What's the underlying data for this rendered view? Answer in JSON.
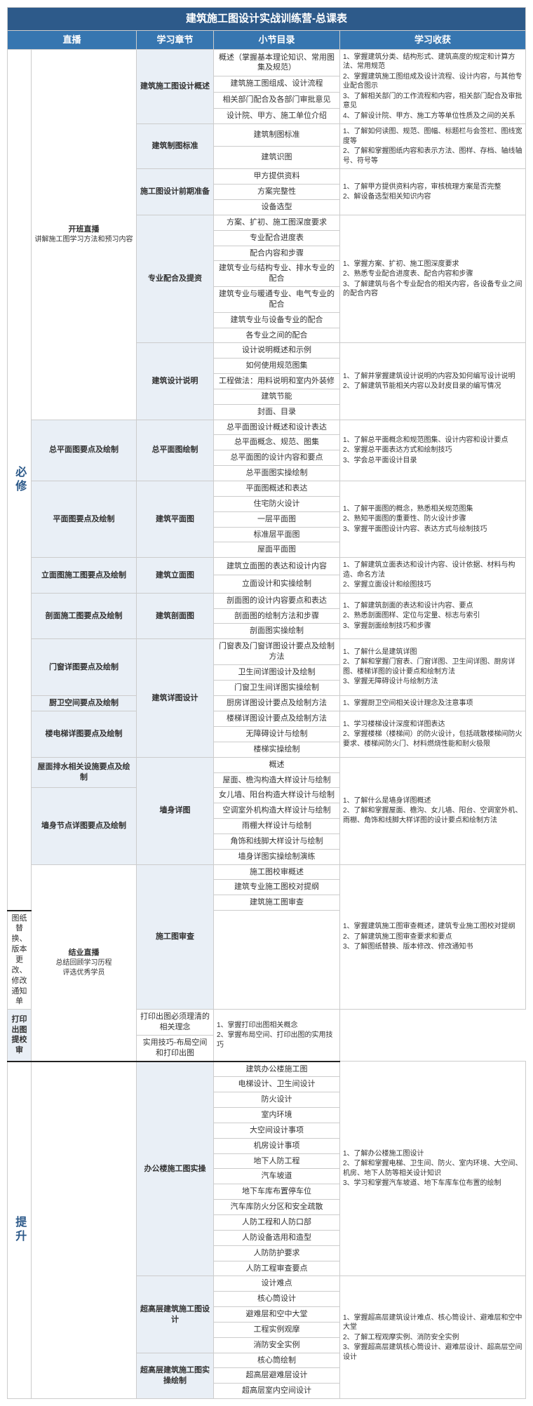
{
  "title": "建筑施工图设计实战训练营-总课表",
  "headers": [
    "直播",
    "学习章节",
    "小节目录",
    "学习收获"
  ],
  "levels": {
    "a": "必修",
    "b": "提升"
  },
  "live": {
    "open_b": "开班直播",
    "open_s": "讲解施工图学习方法和预习内容",
    "end_b": "结业直播",
    "end_s1": "总结回顾学习历程",
    "end_s2": "评选优秀学员"
  },
  "chapters": {
    "c1": "建筑施工图设计概述",
    "c2": "建筑制图标准",
    "c3": "施工图设计前期准备",
    "c4": "专业配合及提资",
    "c5": "建筑设计说明",
    "c6": "总平面图绘制",
    "c7": "建筑平面图",
    "c8": "建筑立面图",
    "c9": "建筑剖面图",
    "c10": "建筑详图设计",
    "c11": "墙身详图",
    "c12": "施工图审查",
    "c13": "打印出图提校审",
    "c14": "办公楼施工图实操",
    "c15": "超高层建筑施工图设计",
    "c16": "超高层建筑施工图实操绘制"
  },
  "topics": {
    "t6": "总平面图要点及绘制",
    "t7": "平面图要点及绘制",
    "t8": "立面图施工图要点及绘制",
    "t9": "剖面施工图要点及绘制",
    "t10a": "门窗详图要点及绘制",
    "t10b": "厨卫空间要点及绘制",
    "t10c": "楼电梯详图要点及绘制",
    "t11a": "屋面排水相关设施要点及绘制",
    "t11b": "墙身节点详图要点及绘制"
  },
  "secs": {
    "s1_1": "概述（掌握基本理论知识、常用图集及规范）",
    "s1_2": "建筑施工图组成、设计流程",
    "s1_3": "相关部门配合及各部门审批意见",
    "s1_4": "设计院、甲方、施工单位介绍",
    "s2_1": "建筑制图标准",
    "s2_2": "建筑识图",
    "s3_1": "甲方提供资料",
    "s3_2": "方案完整性",
    "s3_3": "设备选型",
    "s4_1": "方案、扩初、施工图深度要求",
    "s4_2": "专业配合进度表",
    "s4_3": "配合内容和步骤",
    "s4_4": "建筑专业与结构专业、排水专业的配合",
    "s4_5": "建筑专业与暖通专业、电气专业的配合",
    "s4_6": "建筑专业与设备专业的配合",
    "s4_7": "各专业之间的配合",
    "s5_1": "设计说明概述和示例",
    "s5_2": "如何使用规范图集",
    "s5_3": "工程做法：用料说明和室内外装修",
    "s5_4": "建筑节能",
    "s5_5": "封面、目录",
    "s6_1": "总平面图设计概述和设计表达",
    "s6_2": "总平面概念、规范、图集",
    "s6_3": "总平面图的设计内容和要点",
    "s6_4": "总平面图实操绘制",
    "s7_1": "平面图概述和表达",
    "s7_2": "住宅防火设计",
    "s7_3": "一层平面图",
    "s7_4": "标准层平面图",
    "s7_5": "屋面平面图",
    "s8_1": "建筑立面图的表达和设计内容",
    "s8_2": "立面设计和实操绘制",
    "s9_1": "剖面图的设计内容要点和表达",
    "s9_2": "剖面图的绘制方法和步骤",
    "s9_3": "剖面图实操绘制",
    "s10_1": "门窗表及门窗详图设计要点及绘制方法",
    "s10_2": "卫生间详图设计及绘制",
    "s10_3": "门窗卫生间详图实操绘制",
    "s10_4": "厨房详图设计要点及绘制方法",
    "s10_5": "楼梯详图设计要点及绘制方法",
    "s10_6": "无障碍设计与绘制",
    "s10_7": "楼梯实操绘制",
    "s11_1": "概述",
    "s11_2": "屋面、檐沟构造大样设计与绘制",
    "s11_3": "女儿墙、阳台构造大样设计与绘制",
    "s11_4": "空调室外机构造大样设计与绘制",
    "s11_5": "雨棚大样设计与绘制",
    "s11_6": "角饰和线脚大样设计与绘制",
    "s11_7": "墙身详图实操绘制演练",
    "s12_1": "施工图校审概述",
    "s12_2": "建筑专业施工图校对提纲",
    "s12_3": "建筑施工图审查",
    "s12_4": "图纸替换、版本更改、修改通知单",
    "s13_1": "打印出图必须理清的相关理念",
    "s13_2": "实用技巧-布局空间和打印出图",
    "s14_1": "建筑办公楼施工图",
    "s14_2": "电梯设计、卫生间设计",
    "s14_3": "防火设计",
    "s14_4": "室内环境",
    "s14_5": "大空间设计事项",
    "s14_6": "机房设计事项",
    "s14_7": "地下人防工程",
    "s14_8": "汽车坡道",
    "s14_9": "地下车库布置停车位",
    "s14_10": "汽车库防火分区和安全疏散",
    "s14_11": "人防工程和人防口部",
    "s14_12": "人防设备选用和造型",
    "s14_13": "人防防护要求",
    "s14_14": "人防工程审查要点",
    "s15_1": "设计难点",
    "s15_2": "核心筒设计",
    "s15_3": "避难层和空中大堂",
    "s15_4": "工程实例观摩",
    "s15_5": "消防安全实例",
    "s16_1": "核心筒绘制",
    "s16_2": "超高层避难层设计",
    "s16_3": "超高层室内空间设计"
  },
  "gains": {
    "g1_1": "1、掌握建筑分类、结构形式、建筑高度的规定和计算方法、常用规范",
    "g1_2": "2、掌握建筑施工图组成及设计流程、设计内容，与其他专业配合图示",
    "g1_3": "3、了解相关部门的工作流程和内容，相关部门配合及审批意见",
    "g1_4": "4、了解设计院、甲方、施工方等单位性质及之间的关系",
    "g2_1": "1、了解如何读图、规范、图幅、标题栏与会签栏、图线宽度等",
    "g2_2": "2、了解和掌握图纸内容和表示方法、图样、存档、轴线轴号、符号等",
    "g3_1": "1、了解甲方提供资料内容，审核梳理方案是否完整",
    "g3_2": "2、解设备选型相关知识内容",
    "g4_1": "1、掌握方案、扩初、施工图深度要求",
    "g4_2": "2、熟悉专业配合进度表、配合内容和步骤",
    "g4_3": "3、了解建筑与各个专业配合的相关内容，各设备专业之间的配合内容",
    "g5_1": "1、了解并掌握建筑设计说明的内容及如何编写设计说明",
    "g5_2": "2、了解建筑节能相关内容以及封皮目录的编写情况",
    "g6_1": "1、了解总平面概念和规范图集、设计内容和设计要点",
    "g6_2": "2、掌握总平面表达方式和绘制技巧",
    "g6_3": "3、学会总平面设计目录",
    "g7_1": "1、了解平面图的概念，熟悉相关规范图集",
    "g7_2": "2、熟知平面图的重要性、防火设计步骤",
    "g7_3": "3、掌握平面图设计内容、表达方式与绘制技巧",
    "g8_1": "1、了解建筑立面表达和设计内容、设计依据、材料与构造、命名方法",
    "g8_2": "2、掌握立面设计和绘图技巧",
    "g9_1": "1、了解建筑剖面的表达和设计内容、要点",
    "g9_2": "2、熟悉剖面图样、定位与定量、标志与索引",
    "g9_3": "3、掌握剖面绘制技巧和步骤",
    "g10a_1": "1、了解什么是建筑详图",
    "g10a_2": "2、了解和掌握门窗表、门窗详图、卫生间详图、厨房详图、楼梯详图的设计要点和绘制方法",
    "g10a_3": "3、掌握无障碍设计与绘制方法",
    "g10b_1": "1、掌握厨卫空间相关设计理念及注意事项",
    "g10c_1": "1、学习楼梯设计深度和详图表达",
    "g10c_2": "2、掌握楼梯（楼梯间）的防火设计，包括疏散楼梯间防火要求、楼梯间防火门、材料燃烧性能和耐火极限",
    "g11_1": "1、了解什么是墙身详图概述",
    "g11_2": "2、了解和掌握屋面、檐沟、女儿墙、阳台、空调室外机、雨棚、角饰和线脚大样详图的设计要点和绘制方法",
    "g12_1": "1、掌握建筑施工图审查概述，建筑专业施工图校对提纲",
    "g12_2": "2、了解建筑施工图审查要求和要点",
    "g12_3": "3、了解图纸替换、版本修改、修改通知书",
    "g13_1": "1、掌握打印出图相关概念",
    "g13_2": "2、掌握布局空间、打印出图的实用技巧",
    "g14_1": "1、了解办公楼施工图设计",
    "g14_2": "2、了解和掌握电梯、卫生间、防火、室内环境、大空间、机房、地下人防等相关设计知识",
    "g14_3": "3、学习和掌握汽车坡道、地下车库车位布置的绘制",
    "g15_1": "1、掌握超高层建筑设计难点、核心筒设计、避难层和空中大堂",
    "g15_2": "2、了解工程观摩实例、消防安全实例",
    "g15_3": "3、掌握超高层建筑核心筒设计、避难层设计、超高层空间设计"
  }
}
